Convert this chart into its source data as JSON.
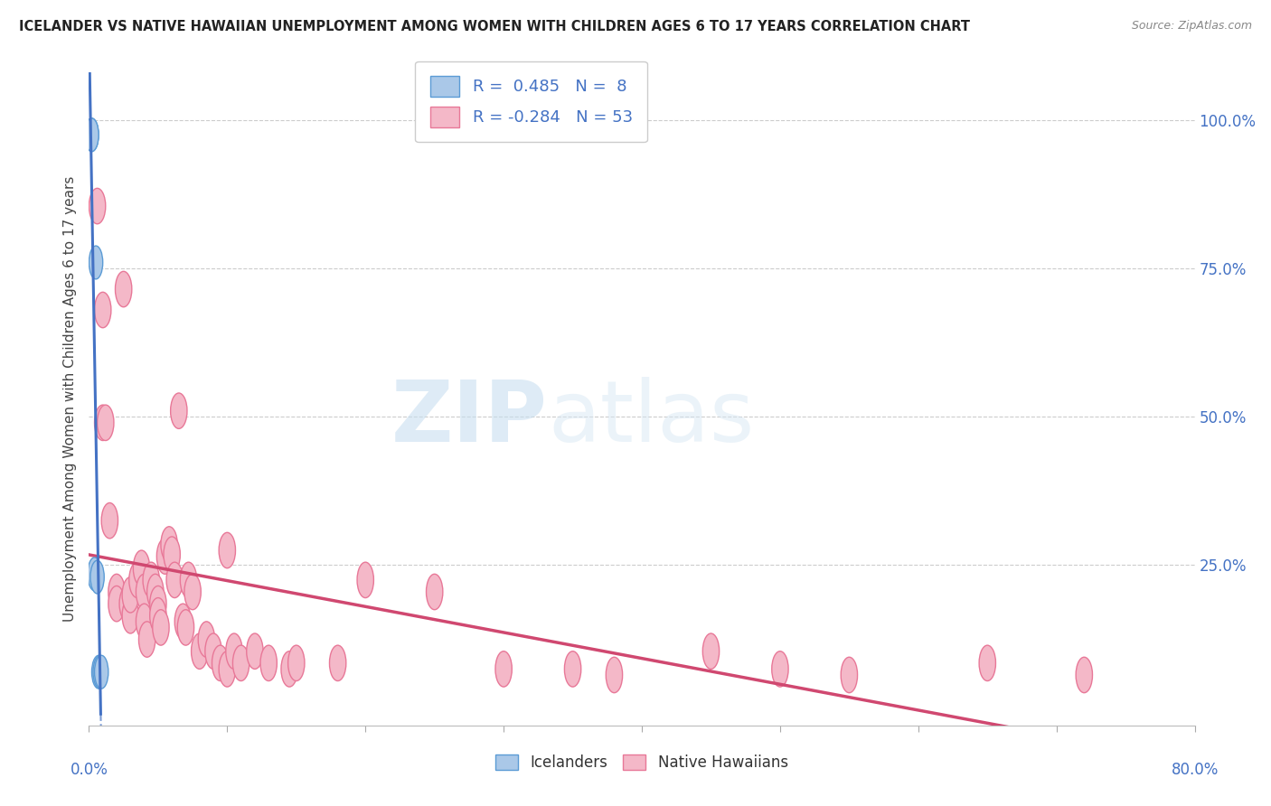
{
  "title": "ICELANDER VS NATIVE HAWAIIAN UNEMPLOYMENT AMONG WOMEN WITH CHILDREN AGES 6 TO 17 YEARS CORRELATION CHART",
  "source": "Source: ZipAtlas.com",
  "ylabel": "Unemployment Among Women with Children Ages 6 to 17 years",
  "yticks": [
    0.0,
    0.25,
    0.5,
    0.75,
    1.0
  ],
  "ytick_labels": [
    "",
    "25.0%",
    "50.0%",
    "75.0%",
    "100.0%"
  ],
  "xlim": [
    0.0,
    0.8
  ],
  "ylim": [
    -0.02,
    1.08
  ],
  "icelanders_R": 0.485,
  "icelanders_N": 8,
  "hawaiians_R": -0.284,
  "hawaiians_N": 53,
  "icelander_color": "#aac8e8",
  "icelander_edge_color": "#5b9bd5",
  "icelander_line_color": "#4472c4",
  "hawaiian_color": "#f4b8c8",
  "hawaiian_edge_color": "#e87898",
  "hawaiian_line_color": "#d04870",
  "watermark_zip": "ZIP",
  "watermark_atlas": "atlas",
  "icelander_x": [
    0.002,
    0.002,
    0.004,
    0.005,
    0.006,
    0.007,
    0.008,
    0.009
  ],
  "icelander_y": [
    0.975,
    0.975,
    0.235,
    0.76,
    0.23,
    0.07,
    0.07,
    0.07
  ],
  "hawaiian_x": [
    0.006,
    0.01,
    0.01,
    0.012,
    0.015,
    0.02,
    0.02,
    0.025,
    0.028,
    0.03,
    0.03,
    0.035,
    0.038,
    0.04,
    0.04,
    0.042,
    0.045,
    0.048,
    0.05,
    0.05,
    0.052,
    0.055,
    0.058,
    0.06,
    0.062,
    0.065,
    0.068,
    0.07,
    0.072,
    0.075,
    0.08,
    0.085,
    0.09,
    0.095,
    0.1,
    0.1,
    0.105,
    0.11,
    0.12,
    0.13,
    0.145,
    0.15,
    0.18,
    0.2,
    0.25,
    0.3,
    0.35,
    0.38,
    0.45,
    0.5,
    0.55,
    0.65,
    0.72
  ],
  "hawaiian_y": [
    0.855,
    0.68,
    0.49,
    0.49,
    0.325,
    0.205,
    0.185,
    0.715,
    0.185,
    0.165,
    0.2,
    0.225,
    0.245,
    0.205,
    0.155,
    0.125,
    0.225,
    0.205,
    0.185,
    0.165,
    0.145,
    0.265,
    0.285,
    0.268,
    0.225,
    0.51,
    0.155,
    0.145,
    0.225,
    0.205,
    0.105,
    0.125,
    0.105,
    0.085,
    0.075,
    0.275,
    0.105,
    0.085,
    0.105,
    0.085,
    0.075,
    0.085,
    0.085,
    0.225,
    0.205,
    0.075,
    0.075,
    0.065,
    0.105,
    0.075,
    0.065,
    0.085,
    0.065
  ]
}
